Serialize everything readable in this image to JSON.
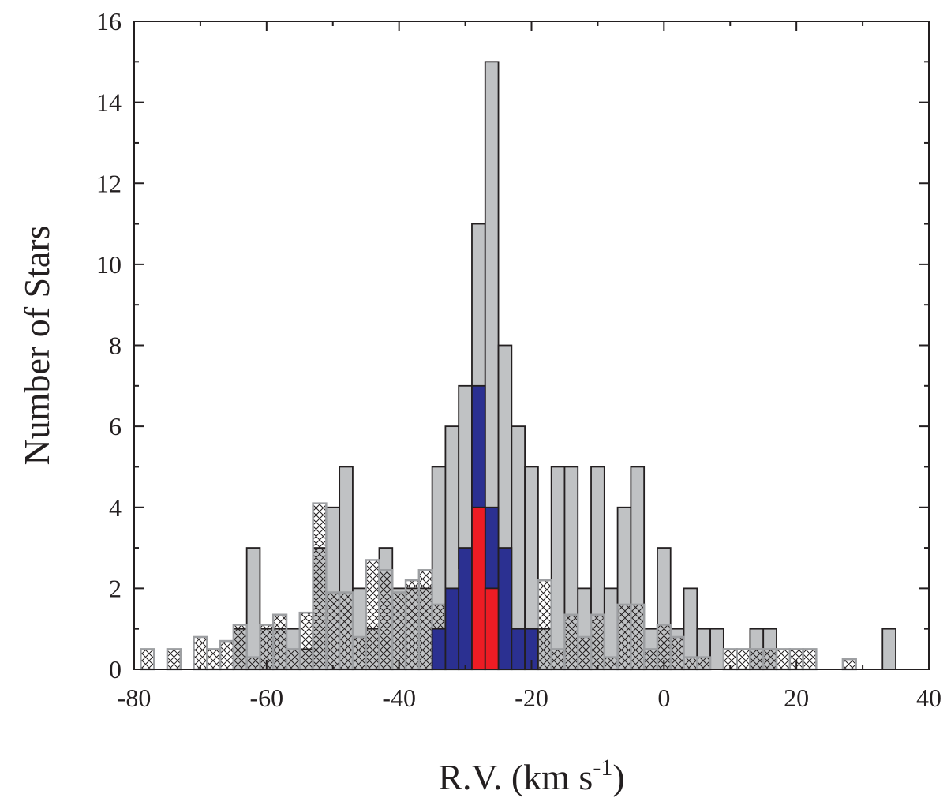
{
  "chart_data": {
    "type": "bar",
    "xlabel": "R.V. (km s",
    "xlabel_superscript": "-1",
    "xlabel_close": ")",
    "ylabel": "Number of Stars",
    "xlim": [
      -80,
      40
    ],
    "ylim": [
      0,
      16
    ],
    "xticks": [
      -80,
      -60,
      -40,
      -20,
      0,
      20,
      40
    ],
    "xtick_labels": [
      "-80",
      "-60",
      "-40",
      "-20",
      "0",
      "20",
      "40"
    ],
    "yticks": [
      0,
      2,
      4,
      6,
      8,
      10,
      12,
      14,
      16
    ],
    "ytick_labels": [
      "0",
      "2",
      "4",
      "6",
      "8",
      "10",
      "12",
      "14",
      "16"
    ],
    "bin_width": 2,
    "grid": false,
    "series": [
      {
        "style": "gray-filled",
        "color": "#c0c2c4",
        "bins": [
          {
            "x": -64,
            "value": 1
          },
          {
            "x": -62,
            "value": 3
          },
          {
            "x": -60,
            "value": 1
          },
          {
            "x": -58,
            "value": 1
          },
          {
            "x": -56,
            "value": 1
          },
          {
            "x": -54,
            "value": 0.5
          },
          {
            "x": -52,
            "value": 3
          },
          {
            "x": -50,
            "value": 4
          },
          {
            "x": -48,
            "value": 5
          },
          {
            "x": -46,
            "value": 2
          },
          {
            "x": -44,
            "value": 1
          },
          {
            "x": -42,
            "value": 3
          },
          {
            "x": -40,
            "value": 2
          },
          {
            "x": -38,
            "value": 2
          },
          {
            "x": -36,
            "value": 2
          },
          {
            "x": -34,
            "value": 5
          },
          {
            "x": -32,
            "value": 6
          },
          {
            "x": -30,
            "value": 7
          },
          {
            "x": -28,
            "value": 11
          },
          {
            "x": -26,
            "value": 15
          },
          {
            "x": -24,
            "value": 8
          },
          {
            "x": -22,
            "value": 6
          },
          {
            "x": -20,
            "value": 5
          },
          {
            "x": -18,
            "value": 1
          },
          {
            "x": -16,
            "value": 5
          },
          {
            "x": -14,
            "value": 5
          },
          {
            "x": -12,
            "value": 2
          },
          {
            "x": -10,
            "value": 5
          },
          {
            "x": -8,
            "value": 2
          },
          {
            "x": -6,
            "value": 4
          },
          {
            "x": -4,
            "value": 5
          },
          {
            "x": -2,
            "value": 1
          },
          {
            "x": 0,
            "value": 3
          },
          {
            "x": 2,
            "value": 1
          },
          {
            "x": 4,
            "value": 2
          },
          {
            "x": 6,
            "value": 1
          },
          {
            "x": 8,
            "value": 1
          },
          {
            "x": 14,
            "value": 1
          },
          {
            "x": 16,
            "value": 1
          },
          {
            "x": 34,
            "value": 1
          }
        ]
      },
      {
        "style": "blue-filled",
        "color": "#2b3091",
        "bins": [
          {
            "x": -34,
            "value": 1
          },
          {
            "x": -32,
            "value": 2
          },
          {
            "x": -30,
            "value": 3
          },
          {
            "x": -28,
            "value": 7
          },
          {
            "x": -26,
            "value": 4
          },
          {
            "x": -24,
            "value": 3
          },
          {
            "x": -22,
            "value": 1
          },
          {
            "x": -20,
            "value": 1
          }
        ]
      },
      {
        "style": "red-filled",
        "color": "#ed1c24",
        "bins": [
          {
            "x": -28,
            "value": 4
          },
          {
            "x": -26,
            "value": 2
          }
        ]
      },
      {
        "style": "crosshatch-outline",
        "color": "#9d9fa2",
        "bins": [
          {
            "x": -78,
            "value": 0.5
          },
          {
            "x": -76,
            "value": 0
          },
          {
            "x": -74,
            "value": 0.5
          },
          {
            "x": -72,
            "value": 0
          },
          {
            "x": -70,
            "value": 0.8
          },
          {
            "x": -68,
            "value": 0.5
          },
          {
            "x": -66,
            "value": 0.7
          },
          {
            "x": -64,
            "value": 1.1
          },
          {
            "x": -62,
            "value": 0.3
          },
          {
            "x": -60,
            "value": 1.1
          },
          {
            "x": -58,
            "value": 1.35
          },
          {
            "x": -56,
            "value": 0.5
          },
          {
            "x": -54,
            "value": 1.4
          },
          {
            "x": -52,
            "value": 4.1
          },
          {
            "x": -50,
            "value": 1.9
          },
          {
            "x": -48,
            "value": 1.9
          },
          {
            "x": -46,
            "value": 0.8
          },
          {
            "x": -44,
            "value": 2.7
          },
          {
            "x": -42,
            "value": 2.45
          },
          {
            "x": -40,
            "value": 1.9
          },
          {
            "x": -38,
            "value": 2.2
          },
          {
            "x": -36,
            "value": 2.45
          },
          {
            "x": -34,
            "value": 1.6
          },
          {
            "x": -32,
            "value": 1.6
          },
          {
            "x": -30,
            "value": 2.45
          },
          {
            "x": -28,
            "value": 2.2
          },
          {
            "x": -26,
            "value": 2.45
          },
          {
            "x": -24,
            "value": 1.1
          },
          {
            "x": -22,
            "value": 0.8
          },
          {
            "x": -20,
            "value": 0.5
          },
          {
            "x": -18,
            "value": 2.2
          },
          {
            "x": -16,
            "value": 0.5
          },
          {
            "x": -14,
            "value": 1.35
          },
          {
            "x": -12,
            "value": 0.8
          },
          {
            "x": -10,
            "value": 1.35
          },
          {
            "x": -8,
            "value": 0.3
          },
          {
            "x": -6,
            "value": 1.6
          },
          {
            "x": -4,
            "value": 1.6
          },
          {
            "x": -2,
            "value": 0.5
          },
          {
            "x": 0,
            "value": 1.1
          },
          {
            "x": 2,
            "value": 0.8
          },
          {
            "x": 4,
            "value": 0.3
          },
          {
            "x": 6,
            "value": 0.3
          },
          {
            "x": 8,
            "value": 0
          },
          {
            "x": 10,
            "value": 0.5
          },
          {
            "x": 12,
            "value": 0.5
          },
          {
            "x": 14,
            "value": 0.5
          },
          {
            "x": 16,
            "value": 0.5
          },
          {
            "x": 18,
            "value": 0.5
          },
          {
            "x": 20,
            "value": 0.5
          },
          {
            "x": 22,
            "value": 0.5
          },
          {
            "x": 28,
            "value": 0.25
          }
        ]
      }
    ]
  }
}
